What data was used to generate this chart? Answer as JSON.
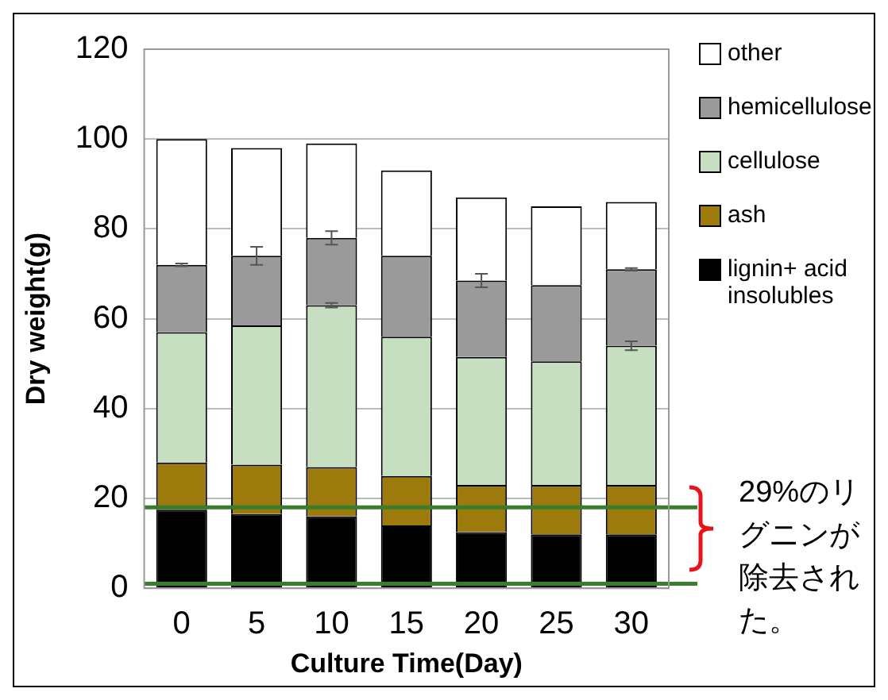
{
  "chart_data": {
    "type": "bar",
    "stacked": true,
    "xlabel": "Culture Time(Day)",
    "ylabel": "Dry weight(g)",
    "categories": [
      "0",
      "5",
      "10",
      "15",
      "20",
      "25",
      "30"
    ],
    "series": [
      {
        "name": "lignin+ acid insolubles",
        "color": "#000000",
        "values": [
          17.5,
          16.5,
          16,
          14,
          12.5,
          12,
          12
        ]
      },
      {
        "name": "ash",
        "color": "#9c7a0c",
        "values": [
          10.5,
          11,
          11,
          11,
          10.5,
          11,
          11
        ]
      },
      {
        "name": "cellulose",
        "color": "#c6dfc0",
        "values": [
          29,
          31,
          36,
          31,
          28.5,
          27.5,
          31
        ],
        "errors": [
          null,
          null,
          0.5,
          null,
          null,
          null,
          1
        ]
      },
      {
        "name": "hemicellulose",
        "color": "#9a9a9a",
        "values": [
          15,
          15.5,
          15,
          18,
          17,
          17,
          17
        ],
        "errors": [
          0.3,
          2,
          1.5,
          null,
          1.5,
          null,
          0.3
        ]
      },
      {
        "name": "other",
        "color": "#ffffff",
        "values": [
          28,
          24,
          21,
          19,
          18.5,
          17.5,
          15
        ]
      }
    ],
    "ylim": [
      0,
      120
    ],
    "yticks": [
      0,
      20,
      40,
      60,
      80,
      100,
      120
    ],
    "grid": "y",
    "legend": "right",
    "ref_lines": [
      {
        "axis": "y",
        "value": 18,
        "color": "#3a7d2c"
      },
      {
        "axis": "y",
        "value": 1,
        "color": "#3a7d2c"
      }
    ],
    "annotations": [
      "29%のリグニンが除去された。"
    ]
  }
}
